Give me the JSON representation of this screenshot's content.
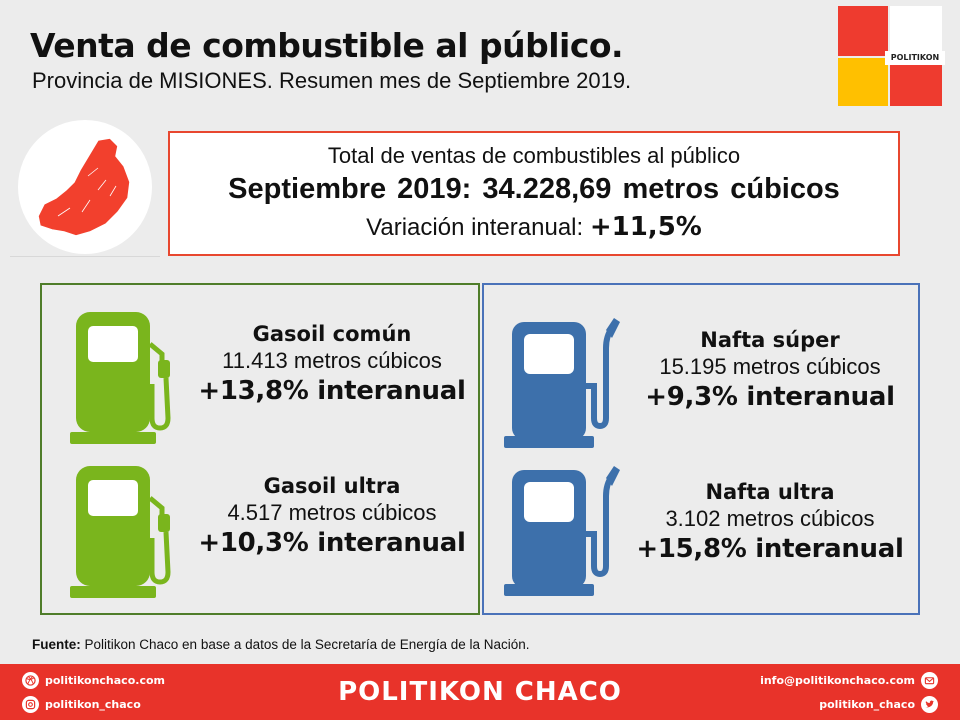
{
  "header": {
    "title": "Venta de combustible al público.",
    "subtitle": "Provincia de MISIONES. Resumen mes de Septiembre 2019.",
    "logo_text": "POLITIKON"
  },
  "summary": {
    "line1": "Total de ventas de combustibles al público",
    "line2": "Septiembre 2019: 34.228,69 metros cúbicos",
    "variation_label": "Variación interanual:",
    "variation_value": "+11,5%"
  },
  "fuels": [
    {
      "name": "Gasoil común",
      "volume": "11.413 metros cúbicos",
      "variation": "+13,8% interanual"
    },
    {
      "name": "Gasoil ultra",
      "volume": "4.517 metros cúbicos",
      "variation": "+10,3% interanual"
    },
    {
      "name": "Nafta súper",
      "volume": "15.195 metros cúbicos",
      "variation": "+9,3% interanual"
    },
    {
      "name": "Nafta ultra",
      "volume": "3.102 metros cúbicos",
      "variation": "+15,8% interanual"
    }
  ],
  "source": {
    "label": "Fuente:",
    "text": " Politikon Chaco en base a datos de la Secretaría  de Energía de la Nación."
  },
  "footer": {
    "brand": "POLITIKON CHACO",
    "website": "politikonchaco.com",
    "instagram": "politikon_chaco",
    "email": "info@politikonchaco.com",
    "twitter": "politikon_chaco"
  },
  "colors": {
    "accent_red": "#e8332a",
    "gasoil_green": "#7ab51d",
    "nafta_blue": "#3d70ab",
    "gasoil_border": "#4f7d2a",
    "nafta_border": "#4a72b9",
    "logo_yellow": "#ffc000"
  },
  "icons": {
    "map": "misiones-province-map-icon",
    "pump": "fuel-pump-icon",
    "website": "dribbble-icon",
    "instagram": "instagram-icon",
    "email": "mail-icon",
    "twitter": "twitter-icon"
  }
}
